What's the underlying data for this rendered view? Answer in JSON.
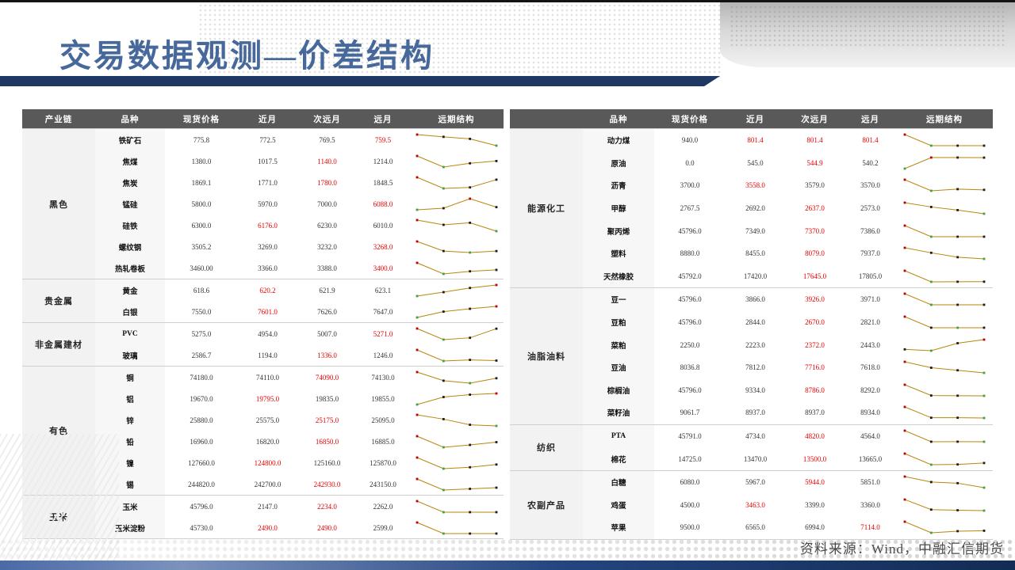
{
  "slide": {
    "title": "交易数据观测—价差结构",
    "source_note": "资料来源：Wind，中融汇信期货"
  },
  "colors": {
    "title_blue": "#46689b",
    "navy_bar": "#1f3864",
    "header_bg": "#595959",
    "highlight_text": "#e60000",
    "spark_line": "#b8860b",
    "spark_high_marker": "#c00000",
    "spark_low_marker": "#3fa23f",
    "spark_marker": "#1c1c1c"
  },
  "left_table": {
    "headers": [
      "产业链",
      "品种",
      "现货价格",
      "近月",
      "次远月",
      "远月",
      "远期结构"
    ],
    "groups": [
      {
        "name": "黑色",
        "rows": [
          {
            "variety": "铁矿石",
            "values": [
              "775.8",
              "772.5",
              "769.5",
              "759.5"
            ],
            "red": [
              3
            ]
          },
          {
            "variety": "焦煤",
            "values": [
              "1380.0",
              "1017.5",
              "1140.0",
              "1214.0"
            ],
            "red": [
              2
            ]
          },
          {
            "variety": "焦炭",
            "values": [
              "1869.1",
              "1771.0",
              "1780.0",
              "1848.5"
            ],
            "red": [
              2
            ]
          },
          {
            "variety": "锰硅",
            "values": [
              "5800.0",
              "5970.0",
              "7000.0",
              "6088.0"
            ],
            "red": [
              3
            ]
          },
          {
            "variety": "硅铁",
            "values": [
              "6300.0",
              "6176.0",
              "6230.0",
              "6010.0"
            ],
            "red": [
              1
            ]
          },
          {
            "variety": "螺纹钢",
            "values": [
              "3505.2",
              "3269.0",
              "3232.0",
              "3268.0"
            ],
            "red": [
              3
            ]
          },
          {
            "variety": "热轧卷板",
            "values": [
              "3460.00",
              "3366.0",
              "3388.0",
              "3400.0"
            ],
            "red": [
              3
            ]
          }
        ]
      },
      {
        "name": "贵金属",
        "rows": [
          {
            "variety": "黄金",
            "values": [
              "618.6",
              "620.2",
              "621.9",
              "623.1"
            ],
            "red": [
              1
            ]
          },
          {
            "variety": "白银",
            "values": [
              "7550.0",
              "7601.0",
              "7626.0",
              "7647.0"
            ],
            "red": [
              1
            ]
          }
        ]
      },
      {
        "name": "非金属建材",
        "rows": [
          {
            "variety": "PVC",
            "values": [
              "5275.0",
              "4954.0",
              "5007.0",
              "5271.0"
            ],
            "red": [
              3
            ]
          },
          {
            "variety": "玻璃",
            "values": [
              "2586.7",
              "1194.0",
              "1336.0",
              "1246.0"
            ],
            "red": [
              2
            ]
          }
        ]
      },
      {
        "name": "有色",
        "rows": [
          {
            "variety": "铜",
            "values": [
              "74180.0",
              "74110.0",
              "74090.0",
              "74130.0"
            ],
            "red": [
              2
            ]
          },
          {
            "variety": "铝",
            "values": [
              "19670.0",
              "19795.0",
              "19835.0",
              "19855.0"
            ],
            "red": [
              1
            ]
          },
          {
            "variety": "锌",
            "values": [
              "25880.0",
              "25575.0",
              "25175.0",
              "25095.0"
            ],
            "red": [
              2
            ]
          },
          {
            "variety": "铅",
            "values": [
              "16960.0",
              "16820.0",
              "16850.0",
              "16885.0"
            ],
            "red": [
              2
            ]
          },
          {
            "variety": "镍",
            "values": [
              "127660.0",
              "124800.0",
              "125160.0",
              "125870.0"
            ],
            "red": [
              1
            ]
          },
          {
            "variety": "锡",
            "values": [
              "244820.0",
              "242700.0",
              "242930.0",
              "243150.0"
            ],
            "red": [
              2
            ]
          }
        ]
      },
      {
        "name": "玉米",
        "rows": [
          {
            "variety": "玉米",
            "values": [
              "45796.0",
              "2147.0",
              "2234.0",
              "2262.0"
            ],
            "red": [
              2
            ]
          },
          {
            "variety": "玉米淀粉",
            "values": [
              "45730.0",
              "2490.0",
              "2490.0",
              "2599.0"
            ],
            "red": [
              1,
              2
            ]
          }
        ]
      }
    ]
  },
  "right_table": {
    "headers": [
      "",
      "品种",
      "现货价格",
      "近月",
      "次远月",
      "远月",
      "远期结构"
    ],
    "groups": [
      {
        "name": "能源化工",
        "rows": [
          {
            "variety": "动力煤",
            "values": [
              "940.0",
              "801.4",
              "801.4",
              "801.4"
            ],
            "red": [
              1,
              2,
              3
            ]
          },
          {
            "variety": "原油",
            "values": [
              "0.0",
              "545.0",
              "544.9",
              "540.2"
            ],
            "red": [
              2
            ]
          },
          {
            "variety": "沥青",
            "values": [
              "3700.0",
              "3558.0",
              "3579.0",
              "3570.0"
            ],
            "red": [
              1
            ]
          },
          {
            "variety": "甲醇",
            "values": [
              "2767.5",
              "2692.0",
              "2637.0",
              "2573.0"
            ],
            "red": [
              2
            ]
          },
          {
            "variety": "聚丙烯",
            "values": [
              "45796.0",
              "7349.0",
              "7370.0",
              "7386.0"
            ],
            "red": [
              2
            ]
          },
          {
            "variety": "塑料",
            "values": [
              "8880.0",
              "8455.0",
              "8079.0",
              "7937.0"
            ],
            "red": [
              2
            ]
          },
          {
            "variety": "天然橡胶",
            "values": [
              "45792.0",
              "17420.0",
              "17645.0",
              "17805.0"
            ],
            "red": [
              2
            ]
          }
        ]
      },
      {
        "name": "油脂油料",
        "rows": [
          {
            "variety": "豆一",
            "values": [
              "45796.0",
              "3866.0",
              "3926.0",
              "3971.0"
            ],
            "red": [
              2
            ]
          },
          {
            "variety": "豆粕",
            "values": [
              "45796.0",
              "2844.0",
              "2670.0",
              "2821.0"
            ],
            "red": [
              2
            ]
          },
          {
            "variety": "菜粕",
            "values": [
              "2250.0",
              "2223.0",
              "2372.0",
              "2443.0"
            ],
            "red": [
              2
            ]
          },
          {
            "variety": "豆油",
            "values": [
              "8036.8",
              "7812.0",
              "7716.0",
              "7618.0"
            ],
            "red": [
              2
            ]
          },
          {
            "variety": "棕榈油",
            "values": [
              "45796.0",
              "9334.0",
              "8786.0",
              "8292.0"
            ],
            "red": [
              2
            ]
          },
          {
            "variety": "菜籽油",
            "values": [
              "9061.7",
              "8937.0",
              "8937.0",
              "8934.0"
            ],
            "red": []
          }
        ]
      },
      {
        "name": "纺织",
        "rows": [
          {
            "variety": "PTA",
            "values": [
              "45791.0",
              "4734.0",
              "4820.0",
              "4564.0"
            ],
            "red": [
              2
            ]
          },
          {
            "variety": "棉花",
            "values": [
              "14725.0",
              "13470.0",
              "13500.0",
              "13665.0"
            ],
            "red": [
              2
            ]
          }
        ]
      },
      {
        "name": "农副产品",
        "rows": [
          {
            "variety": "白糖",
            "values": [
              "6080.0",
              "5967.0",
              "5944.0",
              "5851.0"
            ],
            "red": [
              2
            ]
          },
          {
            "variety": "鸡蛋",
            "values": [
              "4500.0",
              "3463.0",
              "3399.0",
              "3360.0"
            ],
            "red": [
              1
            ]
          },
          {
            "variety": "苹果",
            "values": [
              "9500.0",
              "6565.0",
              "6994.0",
              "7114.0"
            ],
            "red": [
              3
            ]
          }
        ]
      }
    ]
  }
}
